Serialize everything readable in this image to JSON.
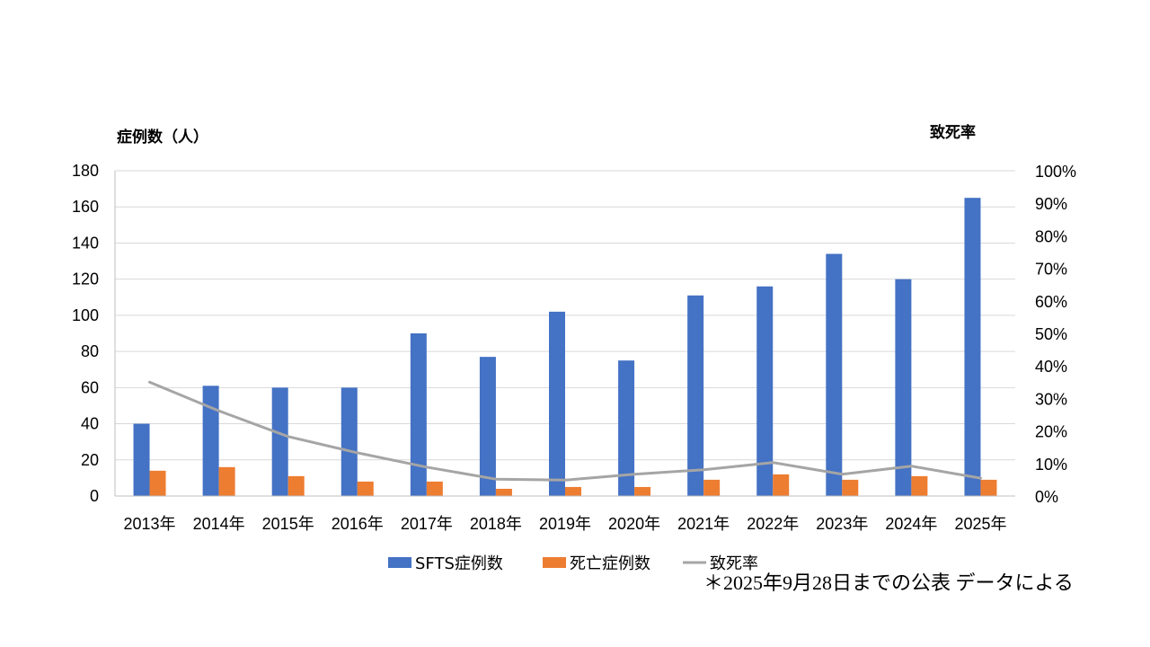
{
  "chart_data": {
    "type": "bar",
    "categories": [
      "2013年",
      "2014年",
      "2015年",
      "2016年",
      "2017年",
      "2018年",
      "2019年",
      "2020年",
      "2021年",
      "2022年",
      "2023年",
      "2024年",
      "2025年"
    ],
    "series": [
      {
        "name": "SFTS症例数",
        "type": "bar",
        "axis": "left",
        "color": "#4472C4",
        "values": [
          40,
          61,
          60,
          60,
          90,
          77,
          102,
          75,
          111,
          116,
          134,
          120,
          165
        ]
      },
      {
        "name": "死亡症例数",
        "type": "bar",
        "axis": "left",
        "color": "#ED7D31",
        "values": [
          14,
          16,
          11,
          8,
          8,
          4,
          5,
          5,
          9,
          12,
          9,
          11,
          9
        ]
      },
      {
        "name": "致死率",
        "type": "line",
        "axis": "right",
        "color": "#A5A5A5",
        "values": [
          0.35,
          0.262,
          0.183,
          0.133,
          0.089,
          0.052,
          0.049,
          0.067,
          0.081,
          0.103,
          0.067,
          0.092,
          0.055
        ]
      }
    ],
    "ylabel": "症例数（人）",
    "y2label": "致死率",
    "ylim": [
      0,
      180
    ],
    "yticks": [
      "0",
      "20",
      "40",
      "60",
      "80",
      "100",
      "120",
      "140",
      "160",
      "180"
    ],
    "y2lim": [
      0,
      1
    ],
    "y2ticks": [
      "0%",
      "10%",
      "20%",
      "30%",
      "40%",
      "50%",
      "60%",
      "70%",
      "80%",
      "90%",
      "100%"
    ],
    "grid": true,
    "legend_position": "bottom",
    "footnote": "＊2025年9月28日までの公表 データによる"
  }
}
